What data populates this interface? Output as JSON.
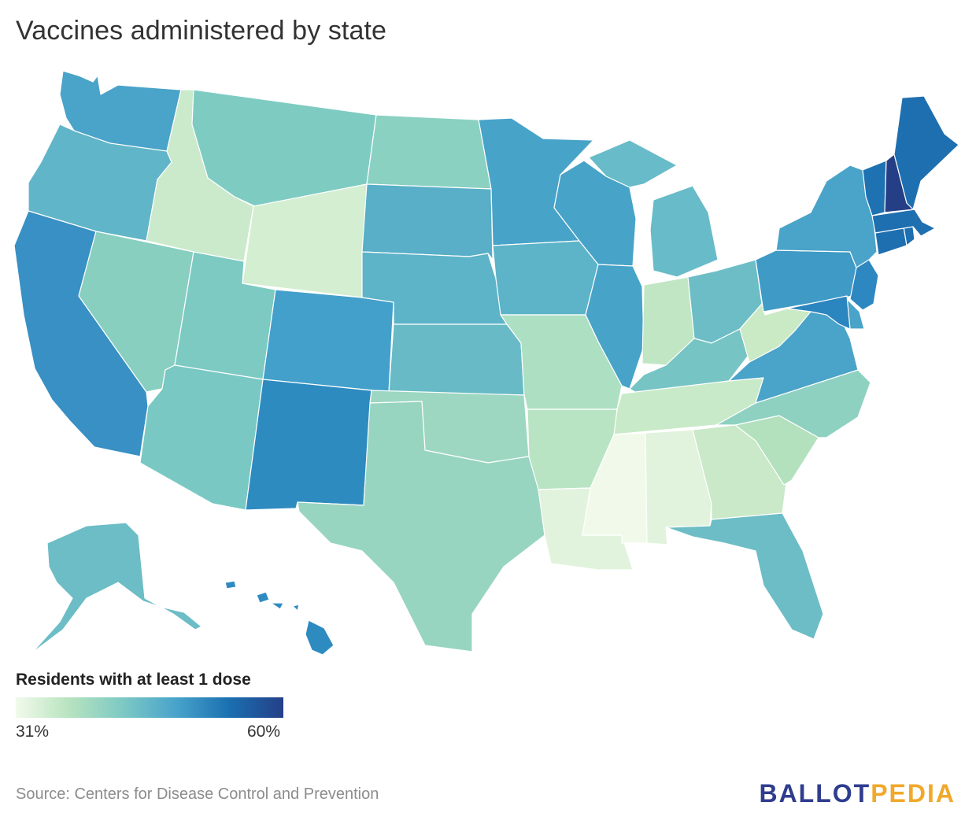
{
  "title": "Vaccines administered by state",
  "legend": {
    "title": "Residents with at least 1 dose",
    "min_label": "31%",
    "max_label": "60%",
    "min_value": 31,
    "max_value": 60,
    "color_stops": [
      "#f2faeb",
      "#b7e3bf",
      "#7dc9c4",
      "#48a3cb",
      "#1a6fb0",
      "#253f87"
    ]
  },
  "source": "Source: Centers for Disease Control and Prevention",
  "logo": {
    "part1": "BALLOT",
    "part2": "PEDIA"
  },
  "states": [
    {
      "id": "WA",
      "color": "#4aa3c8"
    },
    {
      "id": "OR",
      "color": "#61b5c8"
    },
    {
      "id": "CA",
      "color": "#3990c4"
    },
    {
      "id": "NV",
      "color": "#88cfc0"
    },
    {
      "id": "ID",
      "color": "#cbeacc"
    },
    {
      "id": "MT",
      "color": "#7ecbc2"
    },
    {
      "id": "WY",
      "color": "#d3eed0"
    },
    {
      "id": "UT",
      "color": "#7ccac2"
    },
    {
      "id": "AZ",
      "color": "#79c8c3"
    },
    {
      "id": "CO",
      "color": "#42a0cb"
    },
    {
      "id": "NM",
      "color": "#2e8bc0"
    },
    {
      "id": "ND",
      "color": "#8ad1c2"
    },
    {
      "id": "SD",
      "color": "#58afc7"
    },
    {
      "id": "NE",
      "color": "#5db3c7"
    },
    {
      "id": "KS",
      "color": "#68bbc6"
    },
    {
      "id": "OK",
      "color": "#9dd7c1"
    },
    {
      "id": "TX",
      "color": "#98d5c1"
    },
    {
      "id": "MN",
      "color": "#48a3c8"
    },
    {
      "id": "IA",
      "color": "#5db3c8"
    },
    {
      "id": "MO",
      "color": "#ade0c3"
    },
    {
      "id": "AR",
      "color": "#b8e4c3"
    },
    {
      "id": "LA",
      "color": "#e1f3dc"
    },
    {
      "id": "WI",
      "color": "#48a3c8"
    },
    {
      "id": "IL",
      "color": "#48a3c8"
    },
    {
      "id": "MI",
      "color": "#68bbc8"
    },
    {
      "id": "IN",
      "color": "#c1e6c4"
    },
    {
      "id": "OH",
      "color": "#6dbdc6"
    },
    {
      "id": "KY",
      "color": "#77c4c4"
    },
    {
      "id": "TN",
      "color": "#c8eac8"
    },
    {
      "id": "MS",
      "color": "#f1faea"
    },
    {
      "id": "AL",
      "color": "#e1f3dc"
    },
    {
      "id": "GA",
      "color": "#c9e9c8"
    },
    {
      "id": "FL",
      "color": "#6cbdc6"
    },
    {
      "id": "SC",
      "color": "#b3e0bd"
    },
    {
      "id": "NC",
      "color": "#8ed1c1"
    },
    {
      "id": "VA",
      "color": "#4aa3c8"
    },
    {
      "id": "WV",
      "color": "#caeac5"
    },
    {
      "id": "PA",
      "color": "#3f9ac6"
    },
    {
      "id": "NY",
      "color": "#4aa3c8"
    },
    {
      "id": "NJ",
      "color": "#2d87c0"
    },
    {
      "id": "DE",
      "color": "#4aa3c8"
    },
    {
      "id": "MD",
      "color": "#2b85bf"
    },
    {
      "id": "CT",
      "color": "#1e6fb0"
    },
    {
      "id": "RI",
      "color": "#1e6fb0"
    },
    {
      "id": "MA",
      "color": "#1e6fb0"
    },
    {
      "id": "VT",
      "color": "#1f72b2"
    },
    {
      "id": "NH",
      "color": "#253f87"
    },
    {
      "id": "ME",
      "color": "#1e6fb0"
    },
    {
      "id": "AK",
      "color": "#6cbdc6"
    },
    {
      "id": "HI",
      "color": "#2e8bc0"
    }
  ]
}
